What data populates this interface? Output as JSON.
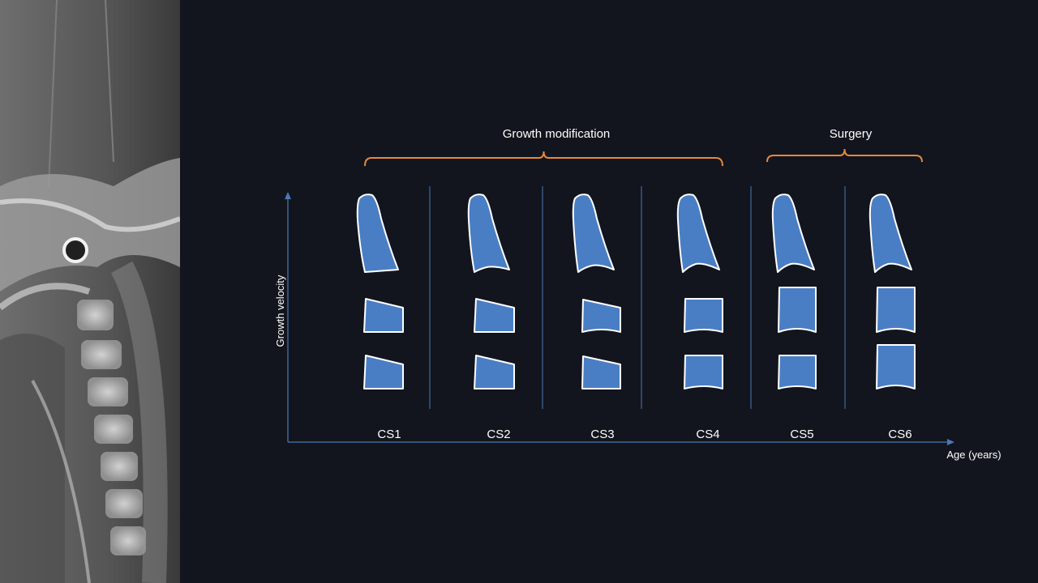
{
  "diagram": {
    "brackets": [
      {
        "label": "Growth modification"
      },
      {
        "label": "Surgery"
      }
    ],
    "y_axis_label": "Growth velocity",
    "x_axis_label": "Age (years)",
    "stages": [
      "CS1",
      "CS2",
      "CS3",
      "CS4",
      "CS5",
      "CS6"
    ],
    "colors": {
      "vertebra_fill": "#4a7ec4",
      "vertebra_stroke": "#ffffff",
      "bracket": "#e8883a",
      "axis": "#4a79b4",
      "background": "#12151d"
    }
  }
}
